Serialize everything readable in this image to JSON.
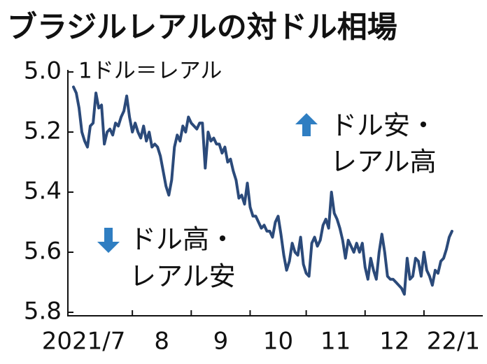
{
  "chart_data": {
    "type": "line",
    "title": "ブラジルレアルの対ドル相場",
    "unit_label": "1ドル＝レアル",
    "annotations": [
      [
        "ドル安・",
        "レアル高"
      ],
      [
        "ドル高・",
        "レアル安"
      ]
    ],
    "categories": [
      "2021/7",
      null,
      null,
      null,
      null,
      null,
      null,
      null,
      null,
      null,
      null,
      null,
      null,
      null,
      null,
      null,
      null,
      null,
      null,
      null,
      null,
      "8",
      null,
      null,
      null,
      null,
      null,
      null,
      null,
      null,
      null,
      null,
      null,
      null,
      null,
      null,
      null,
      null,
      null,
      null,
      null,
      null,
      "9",
      null,
      null,
      null,
      null,
      null,
      null,
      null,
      null,
      null,
      null,
      null,
      null,
      null,
      null,
      null,
      null,
      null,
      null,
      null,
      null,
      "10",
      null,
      null,
      null,
      null,
      null,
      null,
      null,
      null,
      null,
      null,
      null,
      null,
      null,
      null,
      null,
      null,
      null,
      null,
      null,
      "11",
      null,
      null,
      null,
      null,
      null,
      null,
      null,
      null,
      null,
      null,
      null,
      null,
      null,
      null,
      null,
      null,
      null,
      null,
      null,
      null,
      "12",
      null,
      null,
      null,
      null,
      null,
      null,
      null,
      null,
      null,
      null,
      null,
      null,
      null,
      null,
      null,
      null,
      null,
      null,
      null,
      null,
      "22/1",
      null,
      null,
      null,
      null,
      null,
      null,
      null,
      null,
      null,
      null
    ],
    "series": [
      {
        "color": "#2b4a7a",
        "values": [
          5.05,
          5.07,
          5.12,
          5.2,
          5.23,
          5.25,
          5.18,
          5.17,
          5.07,
          5.12,
          5.11,
          5.24,
          5.2,
          5.19,
          5.21,
          5.17,
          5.18,
          5.15,
          5.13,
          5.08,
          5.15,
          5.2,
          5.17,
          5.2,
          5.22,
          5.18,
          5.23,
          5.2,
          5.25,
          5.24,
          5.25,
          5.28,
          5.33,
          5.38,
          5.41,
          5.36,
          5.25,
          5.21,
          5.23,
          5.18,
          5.2,
          5.15,
          5.17,
          5.18,
          5.19,
          5.17,
          5.17,
          5.32,
          5.2,
          5.23,
          5.22,
          5.24,
          5.24,
          5.27,
          5.25,
          5.3,
          5.29,
          5.33,
          5.36,
          5.42,
          5.41,
          5.44,
          5.37,
          5.45,
          5.48,
          5.48,
          5.5,
          5.52,
          5.51,
          5.53,
          5.53,
          5.55,
          5.5,
          5.48,
          5.54,
          5.61,
          5.66,
          5.63,
          5.57,
          5.6,
          5.61,
          5.55,
          5.64,
          5.67,
          5.68,
          5.57,
          5.55,
          5.58,
          5.56,
          5.51,
          5.49,
          5.52,
          5.4,
          5.47,
          5.49,
          5.52,
          5.56,
          5.62,
          5.56,
          5.58,
          5.6,
          5.57,
          5.6,
          5.57,
          5.65,
          5.69,
          5.62,
          5.66,
          5.69,
          5.6,
          5.54,
          5.6,
          5.68,
          5.69,
          5.69,
          5.7,
          5.71,
          5.72,
          5.74,
          5.62,
          5.69,
          5.68,
          5.62,
          5.63,
          5.68,
          5.6,
          5.66,
          5.68,
          5.71,
          5.66,
          5.67,
          5.63,
          5.62,
          5.59,
          5.55,
          5.53
        ]
      }
    ],
    "ylim": [
      5.0,
      5.8
    ],
    "y_inverted": true,
    "yticks": [
      {
        "value": 5.0,
        "label": "5.0"
      },
      5.2,
      5.4,
      5.6,
      5.8
    ]
  }
}
